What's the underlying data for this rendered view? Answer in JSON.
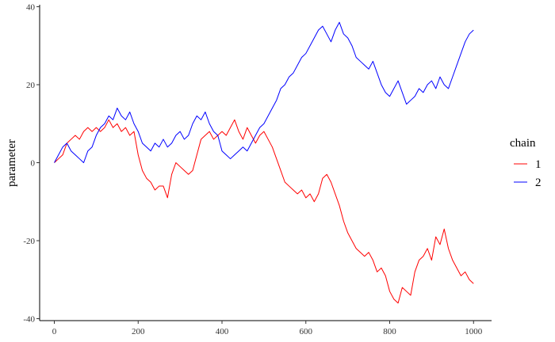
{
  "chart_data": {
    "type": "line",
    "title": "",
    "xlabel": "",
    "ylabel": "parameter",
    "xlim": [
      -35,
      1043
    ],
    "ylim": [
      -40.5,
      40.5
    ],
    "xticks": [
      0,
      200,
      400,
      600,
      800,
      1000
    ],
    "yticks": [
      -40,
      -20,
      0,
      20,
      40
    ],
    "grid": false,
    "legend": {
      "title": "chain",
      "position": "right"
    },
    "series": [
      {
        "name": "1",
        "color": "#ff0000",
        "x": [
          0,
          10,
          20,
          30,
          40,
          50,
          60,
          70,
          80,
          90,
          100,
          110,
          120,
          130,
          140,
          150,
          160,
          170,
          180,
          190,
          200,
          210,
          220,
          230,
          240,
          250,
          260,
          270,
          280,
          290,
          300,
          310,
          320,
          330,
          340,
          350,
          360,
          370,
          380,
          390,
          400,
          410,
          420,
          430,
          440,
          450,
          460,
          470,
          480,
          490,
          500,
          510,
          520,
          530,
          540,
          550,
          560,
          570,
          580,
          590,
          600,
          610,
          620,
          630,
          640,
          650,
          660,
          670,
          680,
          690,
          700,
          710,
          720,
          730,
          740,
          750,
          760,
          770,
          780,
          790,
          800,
          810,
          820,
          830,
          840,
          850,
          860,
          870,
          880,
          890,
          900,
          910,
          920,
          930,
          940,
          950,
          960,
          970,
          980,
          990,
          1000
        ],
        "y": [
          0,
          1,
          2,
          5,
          6,
          7,
          6,
          8,
          9,
          8,
          9,
          8,
          9,
          11,
          9,
          10,
          8,
          9,
          7,
          8,
          2,
          -2,
          -4,
          -5,
          -7,
          -6,
          -6,
          -9,
          -3,
          0,
          -1,
          -2,
          -3,
          -2,
          2,
          6,
          7,
          8,
          6,
          7,
          8,
          7,
          9,
          11,
          8,
          6,
          9,
          7,
          5,
          7,
          8,
          6,
          4,
          1,
          -2,
          -5,
          -6,
          -7,
          -8,
          -7,
          -9,
          -8,
          -10,
          -8,
          -4,
          -3,
          -5,
          -8,
          -11,
          -15,
          -18,
          -20,
          -22,
          -23,
          -24,
          -23,
          -25,
          -28,
          -27,
          -29,
          -33,
          -35,
          -36,
          -32,
          -33,
          -34,
          -28,
          -25,
          -24,
          -22,
          -25,
          -19,
          -21,
          -17,
          -22,
          -25,
          -27,
          -29,
          -28,
          -30,
          -31
        ]
      },
      {
        "name": "2",
        "color": "#0000ff",
        "x": [
          0,
          10,
          20,
          30,
          40,
          50,
          60,
          70,
          80,
          90,
          100,
          110,
          120,
          130,
          140,
          150,
          160,
          170,
          180,
          190,
          200,
          210,
          220,
          230,
          240,
          250,
          260,
          270,
          280,
          290,
          300,
          310,
          320,
          330,
          340,
          350,
          360,
          370,
          380,
          390,
          400,
          410,
          420,
          430,
          440,
          450,
          460,
          470,
          480,
          490,
          500,
          510,
          520,
          530,
          540,
          550,
          560,
          570,
          580,
          590,
          600,
          610,
          620,
          630,
          640,
          650,
          660,
          670,
          680,
          690,
          700,
          710,
          720,
          730,
          740,
          750,
          760,
          770,
          780,
          790,
          800,
          810,
          820,
          830,
          840,
          850,
          860,
          870,
          880,
          890,
          900,
          910,
          920,
          930,
          940,
          950,
          960,
          970,
          980,
          990,
          1000
        ],
        "y": [
          0,
          2,
          4,
          5,
          3,
          2,
          1,
          0,
          3,
          4,
          7,
          9,
          10,
          12,
          11,
          14,
          12,
          11,
          13,
          10,
          8,
          5,
          4,
          3,
          5,
          4,
          6,
          4,
          5,
          7,
          8,
          6,
          7,
          10,
          12,
          11,
          13,
          10,
          8,
          7,
          3,
          2,
          1,
          2,
          3,
          4,
          3,
          5,
          7,
          9,
          10,
          12,
          14,
          16,
          19,
          20,
          22,
          23,
          25,
          27,
          28,
          30,
          32,
          34,
          35,
          33,
          31,
          34,
          36,
          33,
          32,
          30,
          27,
          26,
          25,
          24,
          26,
          23,
          20,
          18,
          17,
          19,
          21,
          18,
          15,
          16,
          17,
          19,
          18,
          20,
          21,
          19,
          22,
          20,
          19,
          22,
          25,
          28,
          31,
          33,
          34
        ]
      }
    ]
  }
}
